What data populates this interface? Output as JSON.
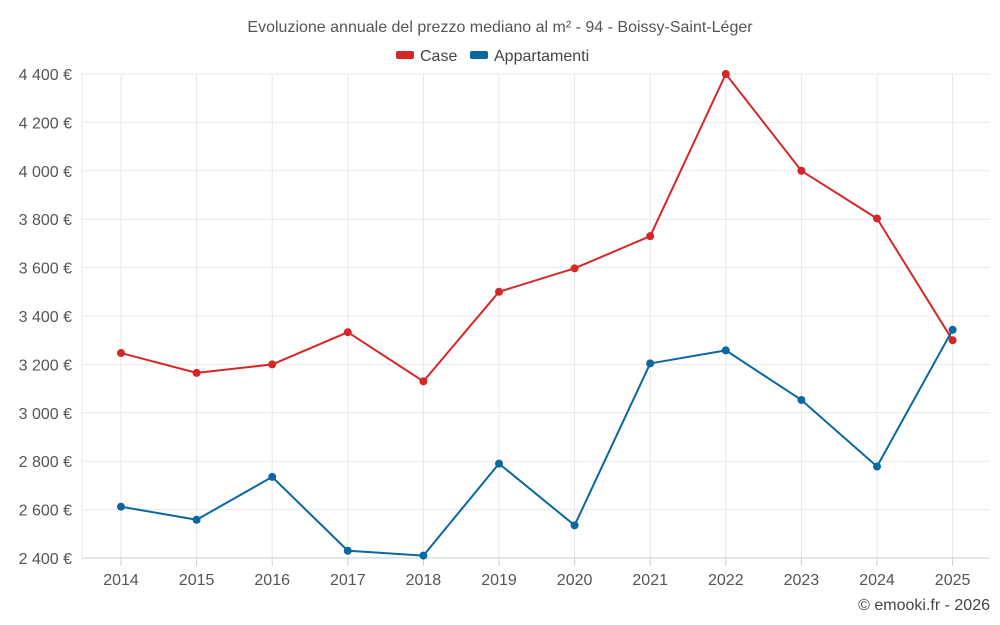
{
  "chart_data": {
    "type": "line",
    "title": "Evoluzione annuale del prezzo mediano al m² - 94 - Boissy-Saint-Léger",
    "categories": [
      "2014",
      "2015",
      "2016",
      "2017",
      "2018",
      "2019",
      "2020",
      "2021",
      "2022",
      "2023",
      "2024",
      "2025"
    ],
    "series": [
      {
        "name": "Case",
        "color": "#d62728",
        "values": [
          3247,
          3165,
          3200,
          3333,
          3130,
          3500,
          3597,
          3730,
          4400,
          4000,
          3803,
          3300
        ]
      },
      {
        "name": "Appartamenti",
        "color": "#0868a0",
        "values": [
          2612,
          2558,
          2735,
          2430,
          2410,
          2790,
          2535,
          3204,
          3258,
          3053,
          2778,
          3343
        ]
      }
    ],
    "ylim": [
      2400,
      4400
    ],
    "yticks": [
      2400,
      2600,
      2800,
      3000,
      3200,
      3400,
      3600,
      3800,
      4000,
      4200,
      4400
    ],
    "ytick_labels": [
      "2 400 €",
      "2 600 €",
      "2 800 €",
      "3 000 €",
      "3 200 €",
      "3 400 €",
      "3 600 €",
      "3 800 €",
      "4 000 €",
      "4 200 €",
      "4 400 €"
    ],
    "xlabel": "",
    "ylabel": "",
    "grid": true,
    "legend": "top-center",
    "credit": "© emooki.fr - 2026"
  }
}
